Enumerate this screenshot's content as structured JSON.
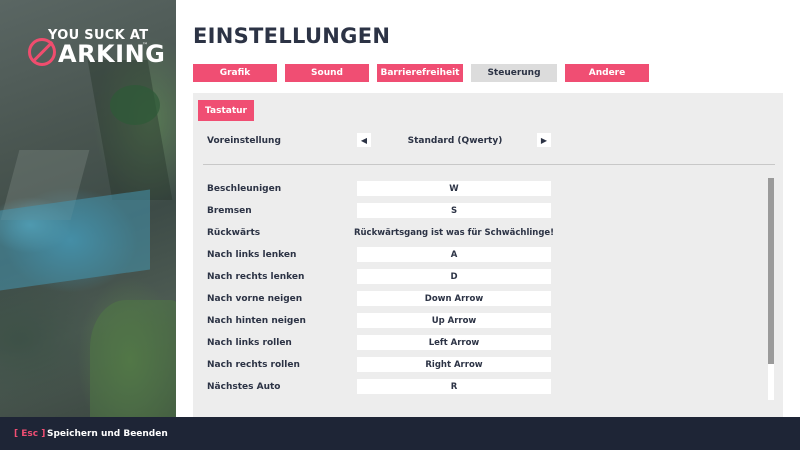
{
  "logo": {
    "line1": "YOU SUCK AT",
    "line2": "ARKING",
    "tm": "™"
  },
  "title": "EINSTELLUNGEN",
  "tabs": [
    {
      "label": "Grafik"
    },
    {
      "label": "Sound"
    },
    {
      "label": "Barrierefreiheit"
    },
    {
      "label": "Steuerung"
    },
    {
      "label": "Andere"
    }
  ],
  "active_tab": "Steuerung",
  "subtab": "Tastatur",
  "preset": {
    "label": "Voreinstellung",
    "value": "Standard (Qwerty)",
    "prev_icon": "triangle-left-icon",
    "next_icon": "triangle-right-icon"
  },
  "bindings": [
    {
      "label": "Beschleunigen",
      "key": "W"
    },
    {
      "label": "Bremsen",
      "key": "S"
    },
    {
      "label": "Rückwärts",
      "key": "Rückwärtsgang ist was für Schwächlinge!"
    },
    {
      "label": "Nach links lenken",
      "key": "A"
    },
    {
      "label": "Nach rechts lenken",
      "key": "D"
    },
    {
      "label": "Nach vorne neigen",
      "key": "Down Arrow"
    },
    {
      "label": "Nach hinten neigen",
      "key": "Up Arrow"
    },
    {
      "label": "Nach links rollen",
      "key": "Left Arrow"
    },
    {
      "label": "Nach rechts rollen",
      "key": "Right Arrow"
    },
    {
      "label": "Nächstes Auto",
      "key": "R"
    }
  ],
  "footer": {
    "esc": "[ Esc ]",
    "action": "Speichern und Beenden"
  },
  "colors": {
    "accent": "#f04e73",
    "text": "#2c3345",
    "footer_bg": "#1e2536",
    "panel_bg": "#ededed"
  }
}
